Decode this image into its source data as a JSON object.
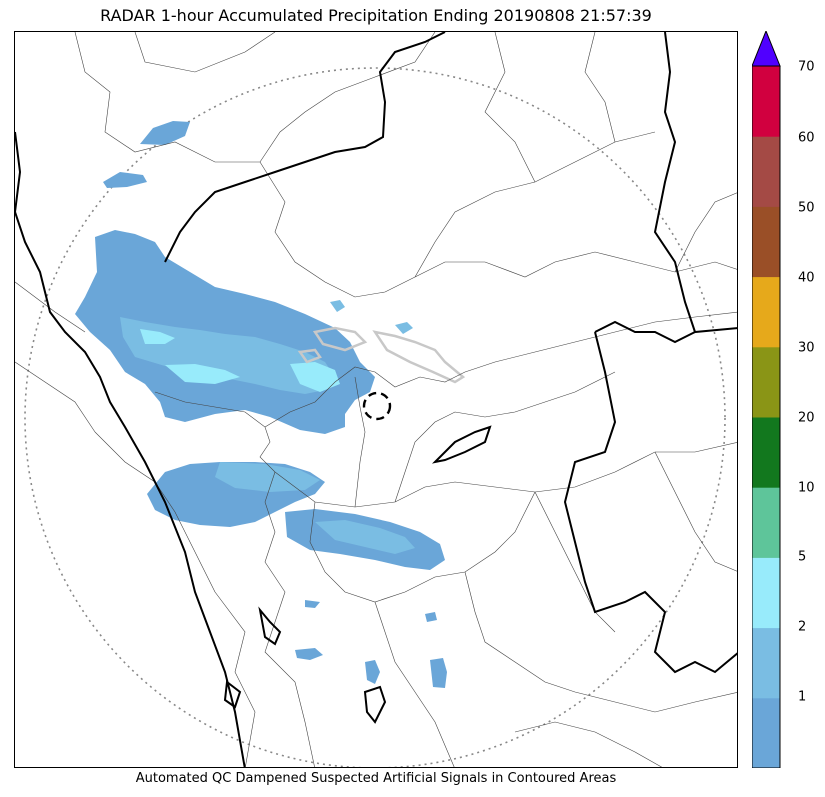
{
  "title": "RADAR 1-hour Accumulated Precipitation Ending 20190808 21:57:39",
  "footer": "Automated QC Dampened Suspected Artificial Signals in Contoured Areas",
  "colorbar": {
    "levels": [
      {
        "label": "1",
        "color": "#6aa6d8"
      },
      {
        "label": "2",
        "color": "#7abde3"
      },
      {
        "label": "5",
        "color": "#98ebfb"
      },
      {
        "label": "10",
        "color": "#5ec59a"
      },
      {
        "label": "20",
        "color": "#12781e"
      },
      {
        "label": "30",
        "color": "#8a9516"
      },
      {
        "label": "40",
        "color": "#e6a91b"
      },
      {
        "label": "50",
        "color": "#9a4f27"
      },
      {
        "label": "60",
        "color": "#a44a45"
      },
      {
        "label": "70",
        "color": "#d1003f"
      }
    ],
    "extend_color": "#5000ff"
  }
}
